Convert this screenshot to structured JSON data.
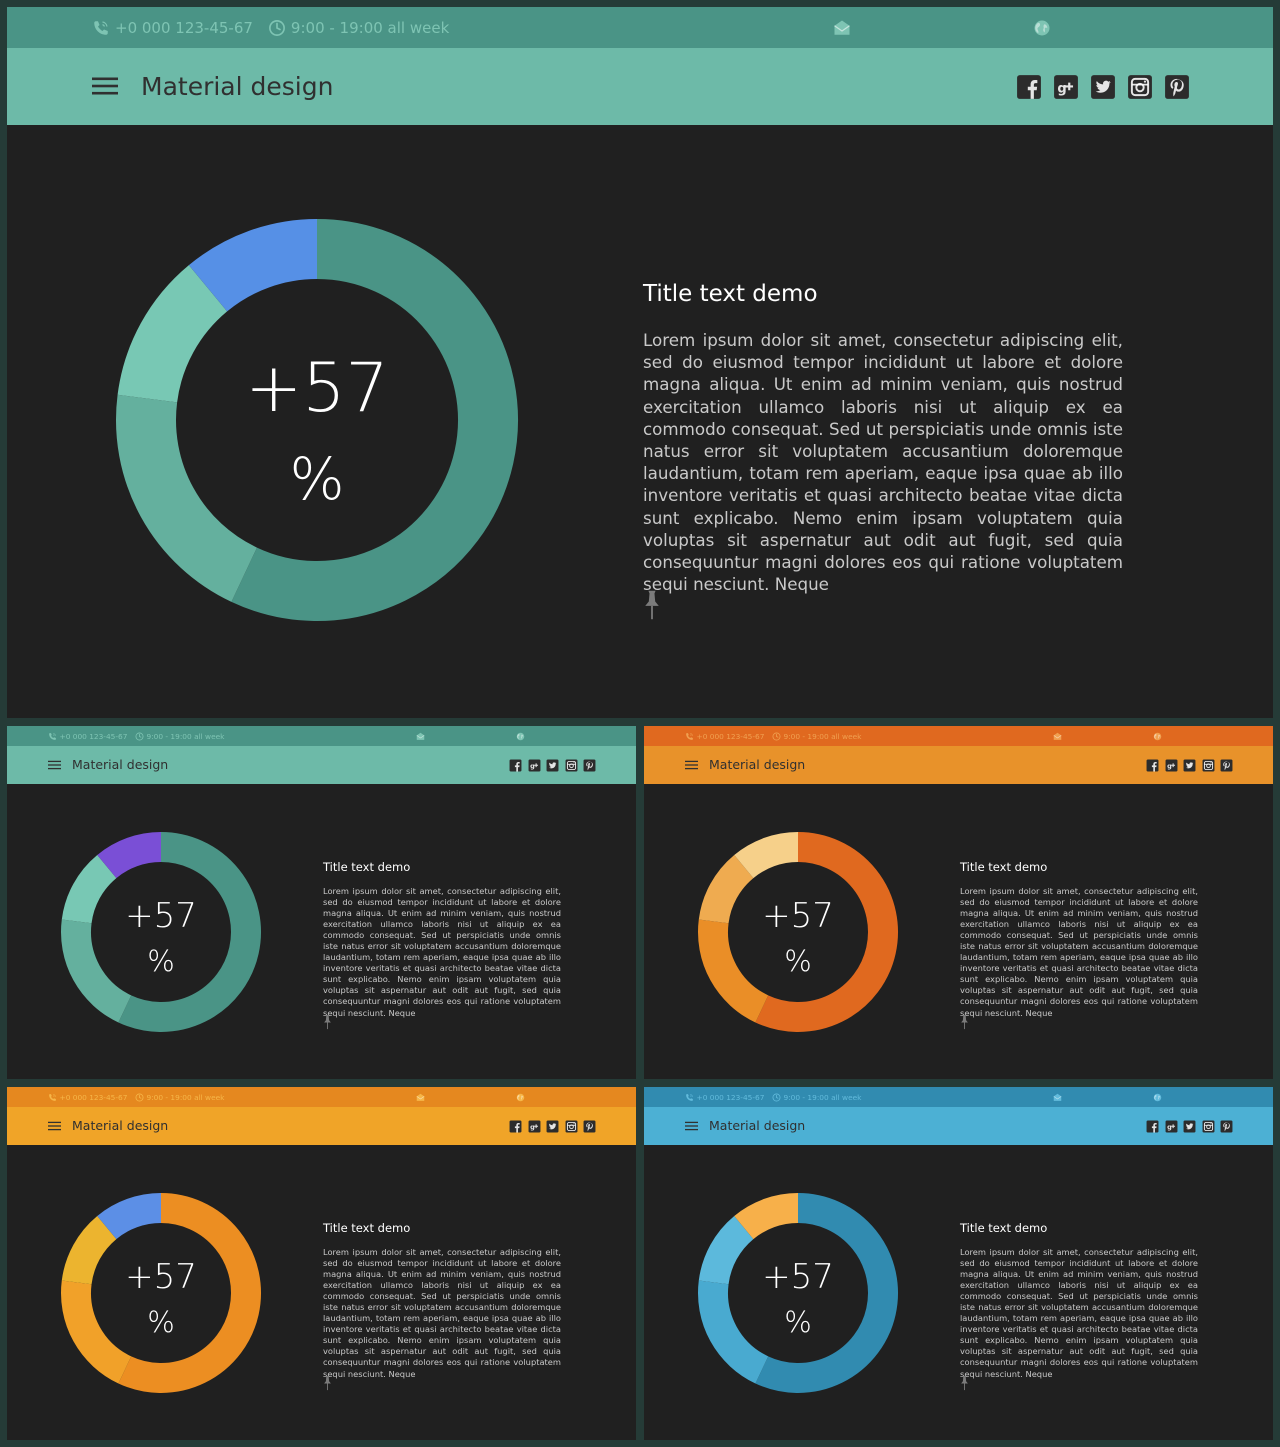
{
  "contact": {
    "phone": "+0 000 123-45-67",
    "hours": "9:00 - 19:00  all week"
  },
  "app_title": "Material design",
  "content": {
    "title": "Title text demo",
    "body": "Lorem ipsum dolor sit amet, consectetur adipiscing elit, sed do eiusmod tempor incididunt ut labore et dolore magna aliqua. Ut enim ad minim veniam, quis nostrud exercitation ullamco laboris nisi ut aliquip ex ea commodo consequat. Sed ut perspiciatis unde omnis iste natus error sit voluptatem accusantium doloremque laudantium, totam rem aperiam, eaque ipsa quae ab illo inventore veritatis et quasi architecto beatae vitae dicta sunt explicabo. Nemo enim ipsam voluptatem quia voluptas sit aspernatur aut odit aut fugit, sed quia consequuntur magni dolores eos qui ratione voluptatem sequi nesciunt. Neque"
  },
  "donut_label": {
    "value": "+57",
    "unit": "%"
  },
  "icons": [
    "phone-icon",
    "clock-icon",
    "mail-icon",
    "globe-icon",
    "menu-icon",
    "facebook-icon",
    "google-plus-icon",
    "twitter-icon",
    "instagram-icon",
    "pinterest-icon",
    "pin-icon"
  ],
  "themes": [
    {
      "name": "teal",
      "topbar": "#4a9486",
      "appbar": "#6dbaa8",
      "contact_text": "#7ec4b3",
      "segments": [
        {
          "value": 57,
          "color": "#4a9486"
        },
        {
          "value": 20,
          "color": "#64b09e"
        },
        {
          "value": 12,
          "color": "#78c8b4"
        },
        {
          "value": 11,
          "color": "#5690e6"
        }
      ]
    },
    {
      "name": "teal-purple",
      "topbar": "#4a9486",
      "appbar": "#6dbaa8",
      "contact_text": "#7ec4b3",
      "segments": [
        {
          "value": 57,
          "color": "#4a9486"
        },
        {
          "value": 20,
          "color": "#64b09e"
        },
        {
          "value": 12,
          "color": "#78c8b4"
        },
        {
          "value": 11,
          "color": "#7a4fd6"
        }
      ]
    },
    {
      "name": "orange",
      "topbar": "#e0691f",
      "appbar": "#e8922a",
      "contact_text": "#f0a050",
      "segments": [
        {
          "value": 57,
          "color": "#e0691f"
        },
        {
          "value": 20,
          "color": "#ea8e27"
        },
        {
          "value": 12,
          "color": "#efab50"
        },
        {
          "value": 11,
          "color": "#f6d08a"
        }
      ]
    },
    {
      "name": "amber",
      "topbar": "#e5881f",
      "appbar": "#f0a428",
      "contact_text": "#f6b648",
      "segments": [
        {
          "value": 57,
          "color": "#ec8e22"
        },
        {
          "value": 20,
          "color": "#f1a129"
        },
        {
          "value": 12,
          "color": "#ecb42f"
        },
        {
          "value": 11,
          "color": "#5c8fe6"
        }
      ]
    },
    {
      "name": "blue",
      "topbar": "#318bb0",
      "appbar": "#4cb0d4",
      "contact_text": "#62bbdc",
      "segments": [
        {
          "value": 57,
          "color": "#318bb0"
        },
        {
          "value": 20,
          "color": "#49aad0"
        },
        {
          "value": 12,
          "color": "#5cb9dc"
        },
        {
          "value": 11,
          "color": "#f7b04a"
        }
      ]
    }
  ]
}
